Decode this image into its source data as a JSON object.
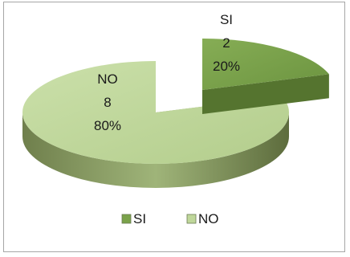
{
  "chart_data": {
    "type": "pie",
    "style": "3d-exploded",
    "categories": [
      "SI",
      "NO"
    ],
    "values": [
      2,
      8
    ],
    "percent_labels": [
      "20%",
      "80%"
    ],
    "colors": [
      "#7aa24a",
      "#bfd79a"
    ],
    "side_colors": [
      "#55742f",
      "#8ea067"
    ],
    "legend_position": "bottom",
    "title": ""
  }
}
